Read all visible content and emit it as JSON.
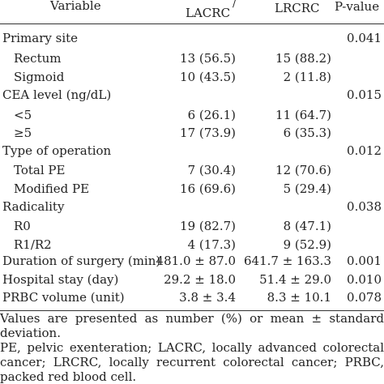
{
  "header": {
    "variable": "Variable",
    "group1": "LACRC",
    "group1_mark": "/",
    "group2": "LRCRC",
    "pvalue": "P-value"
  },
  "rows": [
    {
      "label": "Primary site",
      "indent": false,
      "c1": "",
      "c2": "",
      "p": "0.041"
    },
    {
      "label": "Rectum",
      "indent": true,
      "c1": "13 (56.5)",
      "c2": "15 (88.2)",
      "p": ""
    },
    {
      "label": "Sigmoid",
      "indent": true,
      "c1": "10 (43.5)",
      "c2": "2 (11.8)",
      "p": ""
    },
    {
      "label": "CEA level (ng/dL)",
      "indent": false,
      "c1": "",
      "c2": "",
      "p": "0.015"
    },
    {
      "label": "<5",
      "indent": true,
      "c1": "6 (26.1)",
      "c2": "11 (64.7)",
      "p": ""
    },
    {
      "label": "≥5",
      "indent": true,
      "c1": "17 (73.9)",
      "c2": "6 (35.3)",
      "p": ""
    },
    {
      "label": "Type of operation",
      "indent": false,
      "c1": "",
      "c2": "",
      "p": "0.012"
    },
    {
      "label": "Total PE",
      "indent": true,
      "c1": "7 (30.4)",
      "c2": "12 (70.6)",
      "p": ""
    },
    {
      "label": "Modified PE",
      "indent": true,
      "c1": "16 (69.6)",
      "c2": "5 (29.4)",
      "p": ""
    },
    {
      "label": "Radicality",
      "indent": false,
      "c1": "",
      "c2": "",
      "p": "0.038"
    },
    {
      "label": "R0",
      "indent": true,
      "c1": "19 (82.7)",
      "c2": "8 (47.1)",
      "p": ""
    },
    {
      "label": "R1/R2",
      "indent": true,
      "c1": "4 (17.3)",
      "c2": "9 (52.9)",
      "p": ""
    },
    {
      "label": "Duration of surgery (min)",
      "indent": false,
      "c1": "481.0 ± 87.0",
      "c2": "641.7 ± 163.3",
      "p": "0.001"
    },
    {
      "label": "Hospital stay (day)",
      "indent": false,
      "c1": "29.2 ± 18.0",
      "c2": "51.4 ± 29.0",
      "p": "0.010"
    },
    {
      "label": "PRBC volume (unit)",
      "indent": false,
      "c1": "3.8 ± 3.4",
      "c2": "8.3 ± 10.1",
      "p": "0.078"
    }
  ],
  "notes": [
    "Values are presented as number (%) or mean ± standard deviation.",
    "PE, pelvic exenteration; LACRC, locally advanced colorectal cancer; LRCRC, locally recurrent colorectal cancer; PRBC, packed red blood cell."
  ]
}
